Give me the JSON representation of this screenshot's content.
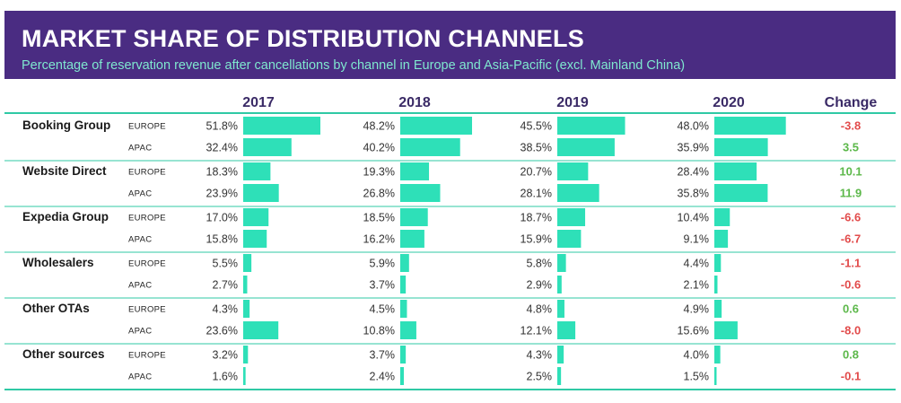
{
  "colors": {
    "header_bg": "#4a2c82",
    "subtitle": "#7fe8cf",
    "bar": "#2ee0b8",
    "rule": "#2fc9a5",
    "positive": "#5cb84a",
    "negative": "#e24b4b"
  },
  "chart_data": {
    "type": "table",
    "title": "MARKET SHARE OF DISTRIBUTION CHANNELS",
    "subtitle": "Percentage of reservation revenue after cancellations by channel in Europe and Asia-Pacific (excl. Mainland China)",
    "years": [
      "2017",
      "2018",
      "2019",
      "2020"
    ],
    "change_label": "Change",
    "groups": [
      {
        "name": "Booking Group",
        "rows": [
          {
            "region": "EUROPE",
            "values": [
              51.8,
              48.2,
              45.5,
              48.0
            ],
            "labels": [
              "51.8%",
              "48.2%",
              "45.5%",
              "48.0%"
            ],
            "change": -3.8,
            "change_label": "-3.8"
          },
          {
            "region": "APAC",
            "values": [
              32.4,
              40.2,
              38.5,
              35.9
            ],
            "labels": [
              "32.4%",
              "40.2%",
              "38.5%",
              "35.9%"
            ],
            "change": 3.5,
            "change_label": "3.5"
          }
        ]
      },
      {
        "name": "Website Direct",
        "rows": [
          {
            "region": "EUROPE",
            "values": [
              18.3,
              19.3,
              20.7,
              28.4
            ],
            "labels": [
              "18.3%",
              "19.3%",
              "20.7%",
              "28.4%"
            ],
            "change": 10.1,
            "change_label": "10.1"
          },
          {
            "region": "APAC",
            "values": [
              23.9,
              26.8,
              28.1,
              35.8
            ],
            "labels": [
              "23.9%",
              "26.8%",
              "28.1%",
              "35.8%"
            ],
            "change": 11.9,
            "change_label": "11.9"
          }
        ]
      },
      {
        "name": "Expedia Group",
        "rows": [
          {
            "region": "EUROPE",
            "values": [
              17.0,
              18.5,
              18.7,
              10.4
            ],
            "labels": [
              "17.0%",
              "18.5%",
              "18.7%",
              "10.4%"
            ],
            "change": -6.6,
            "change_label": "-6.6"
          },
          {
            "region": "APAC",
            "values": [
              15.8,
              16.2,
              15.9,
              9.1
            ],
            "labels": [
              "15.8%",
              "16.2%",
              "15.9%",
              "9.1%"
            ],
            "change": -6.7,
            "change_label": "-6.7"
          }
        ]
      },
      {
        "name": "Wholesalers",
        "rows": [
          {
            "region": "EUROPE",
            "values": [
              5.5,
              5.9,
              5.8,
              4.4
            ],
            "labels": [
              "5.5%",
              "5.9%",
              "5.8%",
              "4.4%"
            ],
            "change": -1.1,
            "change_label": "-1.1"
          },
          {
            "region": "APAC",
            "values": [
              2.7,
              3.7,
              2.9,
              2.1
            ],
            "labels": [
              "2.7%",
              "3.7%",
              "2.9%",
              "2.1%"
            ],
            "change": -0.6,
            "change_label": "-0.6"
          }
        ]
      },
      {
        "name": "Other OTAs",
        "rows": [
          {
            "region": "EUROPE",
            "values": [
              4.3,
              4.5,
              4.8,
              4.9
            ],
            "labels": [
              "4.3%",
              "4.5%",
              "4.8%",
              "4.9%"
            ],
            "change": 0.6,
            "change_label": "0.6"
          },
          {
            "region": "APAC",
            "values": [
              23.6,
              10.8,
              12.1,
              15.6
            ],
            "labels": [
              "23.6%",
              "10.8%",
              "12.1%",
              "15.6%"
            ],
            "change": -8.0,
            "change_label": "-8.0"
          }
        ]
      },
      {
        "name": "Other sources",
        "rows": [
          {
            "region": "EUROPE",
            "values": [
              3.2,
              3.7,
              4.3,
              4.0
            ],
            "labels": [
              "3.2%",
              "3.7%",
              "4.3%",
              "4.0%"
            ],
            "change": 0.8,
            "change_label": "0.8"
          },
          {
            "region": "APAC",
            "values": [
              1.6,
              2.4,
              2.5,
              1.5
            ],
            "labels": [
              "1.6%",
              "2.4%",
              "2.5%",
              "1.5%"
            ],
            "change": -0.1,
            "change_label": "-0.1"
          }
        ]
      }
    ]
  }
}
